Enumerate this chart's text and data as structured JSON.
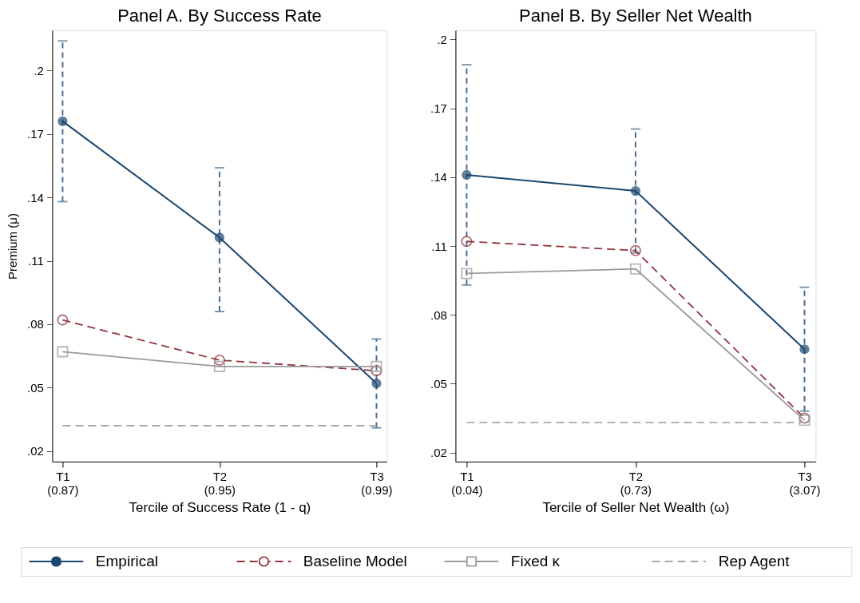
{
  "chart_data": [
    {
      "type": "line",
      "title": "Panel A. By Success Rate",
      "xlabel": "Tercile of Success Rate (1 - q)",
      "ylabel": "Premium (μ)",
      "categories": [
        "T1\n(0.87)",
        "T2\n(0.95)",
        "T3\n(0.99)"
      ],
      "ylim": [
        0.015,
        0.219
      ],
      "yticks": [
        {
          "value": 0.02,
          "label": ".02"
        },
        {
          "value": 0.05,
          "label": ".05"
        },
        {
          "value": 0.08,
          "label": ".08"
        },
        {
          "value": 0.11,
          "label": ".11"
        },
        {
          "value": 0.14,
          "label": ".14"
        },
        {
          "value": 0.17,
          "label": ".17"
        },
        {
          "value": 0.2,
          "label": ".2"
        }
      ],
      "grid": false,
      "legend": "bottom",
      "series": [
        {
          "name": "Empirical",
          "color": "#1a476f",
          "values": [
            0.176,
            0.121,
            0.052
          ],
          "errors": [
            [
              0.138,
              0.214
            ],
            [
              0.086,
              0.154
            ],
            [
              0.031,
              0.073
            ]
          ],
          "marker": "circle",
          "line_style": "solid"
        },
        {
          "name": "Baseline Model",
          "color": "#90353b",
          "values": [
            0.082,
            0.063,
            0.058
          ],
          "marker": "circle",
          "line_style": "dashed"
        },
        {
          "name": "Fixed κ",
          "color": "#9a9a9a",
          "values": [
            0.067,
            0.06,
            0.06
          ],
          "marker": "square",
          "line_style": "solid"
        },
        {
          "name": "Rep Agent",
          "color": "#a8a8a8",
          "values": [
            0.032,
            0.032,
            0.032
          ],
          "marker": "none",
          "line_style": "dashed"
        }
      ]
    },
    {
      "type": "line",
      "title": "Panel B. By Seller Net Wealth",
      "xlabel": "Tercile of Seller Net Wealth (ω)",
      "categories": [
        "T1\n(0.04)",
        "T2\n(0.73)",
        "T3\n(3.07)"
      ],
      "ylim": [
        0.016,
        0.204
      ],
      "yticks": [
        {
          "value": 0.02,
          "label": ".02"
        },
        {
          "value": 0.05,
          "label": ".05"
        },
        {
          "value": 0.08,
          "label": ".08"
        },
        {
          "value": 0.11,
          "label": ".11"
        },
        {
          "value": 0.14,
          "label": ".14"
        },
        {
          "value": 0.17,
          "label": ".17"
        },
        {
          "value": 0.2,
          "label": ".2"
        }
      ],
      "grid": false,
      "legend": "bottom",
      "series": [
        {
          "name": "Empirical",
          "color": "#1a476f",
          "values": [
            0.141,
            0.134,
            0.065
          ],
          "errors": [
            [
              0.093,
              0.189
            ],
            [
              0.107,
              0.161
            ],
            [
              0.038,
              0.092
            ]
          ],
          "marker": "circle",
          "line_style": "solid"
        },
        {
          "name": "Baseline Model",
          "color": "#90353b",
          "values": [
            0.112,
            0.108,
            0.035
          ],
          "marker": "circle",
          "line_style": "dashed"
        },
        {
          "name": "Fixed κ",
          "color": "#9a9a9a",
          "values": [
            0.098,
            0.1,
            0.034
          ],
          "marker": "square",
          "line_style": "solid"
        },
        {
          "name": "Rep Agent",
          "color": "#a8a8a8",
          "values": [
            0.033,
            0.033,
            0.033
          ],
          "marker": "none",
          "line_style": "dashed"
        }
      ]
    }
  ]
}
